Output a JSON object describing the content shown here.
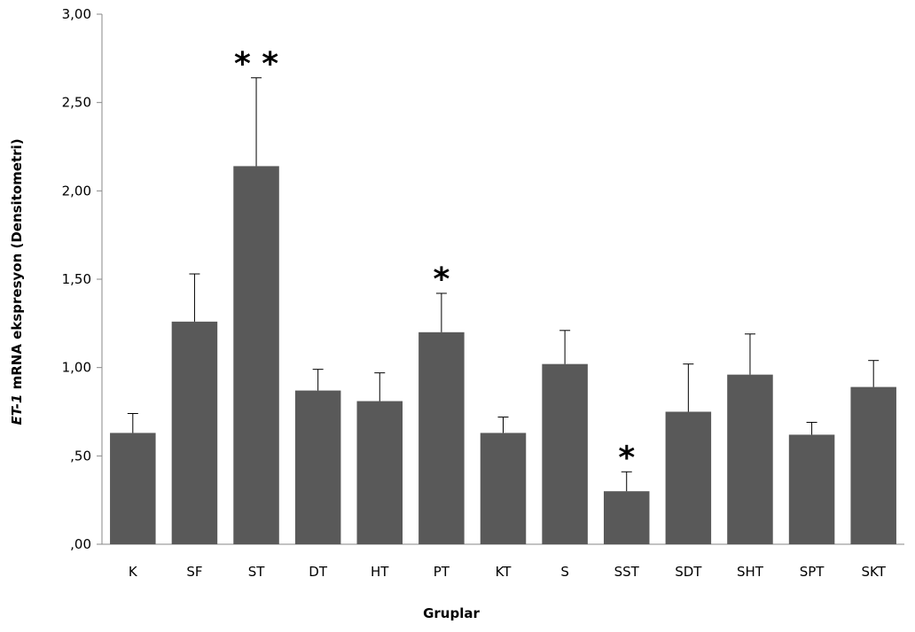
{
  "chart_data": {
    "type": "bar",
    "xlabel": "Gruplar",
    "ylabel_italic": "ET-1",
    "ylabel_rest": " mRNA ekspresyon (Densitometri)",
    "ylim": [
      0,
      3
    ],
    "yticks": [
      {
        "value": 0,
        "label": ",00"
      },
      {
        "value": 0.5,
        "label": ",50"
      },
      {
        "value": 1,
        "label": "1,00"
      },
      {
        "value": 1.5,
        "label": "1,50"
      },
      {
        "value": 2,
        "label": "2,00"
      },
      {
        "value": 2.5,
        "label": "2,50"
      },
      {
        "value": 3,
        "label": "3,00"
      }
    ],
    "categories": [
      "K",
      "SF",
      "ST",
      "DT",
      "HT",
      "PT",
      "KT",
      "S",
      "SST",
      "SDT",
      "SHT",
      "SPT",
      "SKT"
    ],
    "values": [
      0.63,
      1.26,
      2.14,
      0.87,
      0.81,
      1.2,
      0.63,
      1.02,
      0.3,
      0.75,
      0.96,
      0.62,
      0.89
    ],
    "error_upper": [
      0.74,
      1.53,
      2.64,
      0.99,
      0.97,
      1.42,
      0.72,
      1.21,
      0.41,
      1.02,
      1.19,
      0.69,
      1.04
    ],
    "significance": [
      "",
      "",
      "**",
      "",
      "",
      "*",
      "",
      "",
      "*",
      "",
      "",
      "",
      ""
    ],
    "bar_color": "#595959",
    "grid": false
  }
}
